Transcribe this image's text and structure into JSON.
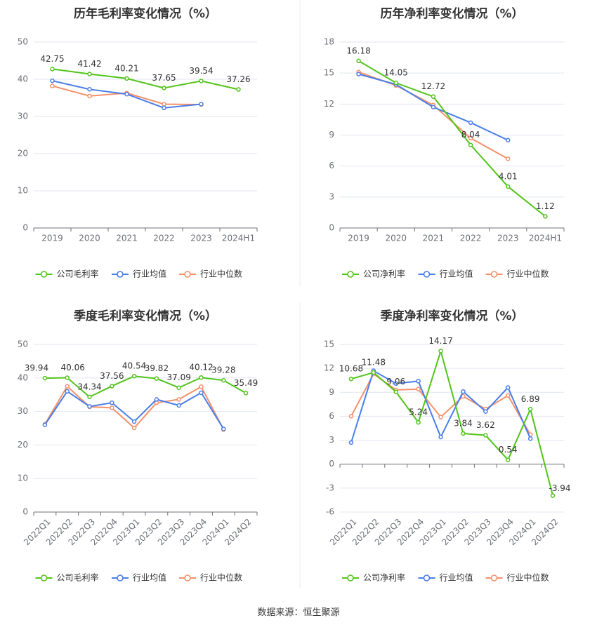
{
  "source_label": "数据来源：恒生聚源",
  "colors": {
    "company": "#52c41a",
    "avg": "#4a7ee8",
    "median": "#f4916b"
  },
  "chart_data": [
    {
      "type": "line",
      "title": "历年毛利率变化情况（%）",
      "categories": [
        "2019",
        "2020",
        "2021",
        "2022",
        "2023",
        "2024H1"
      ],
      "ylim": [
        0,
        50
      ],
      "yticks": [
        0,
        10,
        20,
        30,
        40,
        50
      ],
      "tick_rotate": false,
      "grid": true,
      "legend_position": "bottom",
      "series": [
        {
          "name": "公司毛利率",
          "key": "company",
          "values": [
            42.75,
            41.42,
            40.21,
            37.65,
            39.54,
            37.26
          ],
          "labels": [
            "42.75",
            "41.42",
            "40.21",
            "37.65",
            "39.54",
            "37.26"
          ]
        },
        {
          "name": "行业均值",
          "key": "avg",
          "values": [
            39.6,
            37.3,
            36.0,
            32.3,
            33.3,
            null
          ]
        },
        {
          "name": "行业中位数",
          "key": "median",
          "values": [
            38.2,
            35.5,
            36.3,
            33.3,
            33.2,
            null
          ]
        }
      ]
    },
    {
      "type": "line",
      "title": "历年净利率变化情况（%）",
      "categories": [
        "2019",
        "2020",
        "2021",
        "2022",
        "2023",
        "2024H1"
      ],
      "ylim": [
        0,
        18
      ],
      "yticks": [
        0,
        3,
        6,
        9,
        12,
        15,
        18
      ],
      "tick_rotate": false,
      "grid": true,
      "legend_position": "bottom",
      "series": [
        {
          "name": "公司净利率",
          "key": "company",
          "values": [
            16.18,
            14.05,
            12.72,
            8.04,
            4.01,
            1.12
          ],
          "labels": [
            "16.18",
            "14.05",
            "12.72",
            "8.04",
            "4.01",
            "1.12"
          ]
        },
        {
          "name": "行业均值",
          "key": "avg",
          "values": [
            14.9,
            13.9,
            11.7,
            10.2,
            8.5,
            null
          ]
        },
        {
          "name": "行业中位数",
          "key": "median",
          "values": [
            15.1,
            13.8,
            11.9,
            8.7,
            6.7,
            null
          ]
        }
      ]
    },
    {
      "type": "line",
      "title": "季度毛利率变化情况（%）",
      "categories": [
        "2022Q1",
        "2022Q2",
        "2022Q3",
        "2022Q4",
        "2023Q1",
        "2023Q2",
        "2023Q3",
        "2023Q4",
        "2024Q1",
        "2024Q2"
      ],
      "ylim": [
        0,
        50
      ],
      "yticks": [
        0,
        10,
        20,
        30,
        40,
        50
      ],
      "tick_rotate": true,
      "grid": true,
      "legend_position": "bottom",
      "series": [
        {
          "name": "公司毛利率",
          "key": "company",
          "values": [
            39.94,
            40.06,
            34.34,
            37.56,
            40.54,
            39.82,
            37.09,
            40.12,
            39.28,
            35.49
          ],
          "labels": [
            "39.94",
            "40.06",
            "34.34",
            "37.56",
            "40.54",
            "39.82",
            "37.09",
            "40.12",
            "39.28",
            "35.49"
          ]
        },
        {
          "name": "行业均值",
          "key": "avg",
          "values": [
            26.0,
            36.0,
            31.5,
            32.6,
            27.0,
            33.6,
            31.8,
            35.6,
            24.8,
            null
          ]
        },
        {
          "name": "行业中位数",
          "key": "median",
          "values": [
            26.2,
            37.5,
            31.4,
            31.1,
            25.1,
            32.6,
            33.6,
            37.4,
            24.6,
            null
          ]
        }
      ]
    },
    {
      "type": "line",
      "title": "季度净利率变化情况（%）",
      "categories": [
        "2022Q1",
        "2022Q2",
        "2022Q3",
        "2022Q4",
        "2023Q1",
        "2023Q2",
        "2023Q3",
        "2023Q4",
        "2024Q1",
        "2024Q2"
      ],
      "ylim": [
        -6,
        15
      ],
      "yticks": [
        -6,
        -3,
        0,
        3,
        6,
        9,
        12,
        15
      ],
      "tick_rotate": true,
      "grid": true,
      "legend_position": "bottom",
      "series": [
        {
          "name": "公司净利率",
          "key": "company",
          "values": [
            10.68,
            11.48,
            9.06,
            5.24,
            14.17,
            3.84,
            3.62,
            0.54,
            6.89,
            -3.94
          ],
          "labels": [
            "10.68",
            "11.48",
            "9.06",
            "5.24",
            "14.17",
            "3.84",
            "3.62",
            "0.54",
            "6.89",
            "-3.94"
          ]
        },
        {
          "name": "行业均值",
          "key": "avg",
          "values": [
            2.7,
            11.7,
            10.1,
            10.4,
            3.4,
            9.1,
            6.6,
            9.6,
            3.2,
            null
          ]
        },
        {
          "name": "行业中位数",
          "key": "median",
          "values": [
            6.0,
            11.3,
            9.3,
            9.4,
            5.9,
            8.5,
            6.9,
            8.6,
            3.7,
            null
          ]
        }
      ]
    }
  ]
}
